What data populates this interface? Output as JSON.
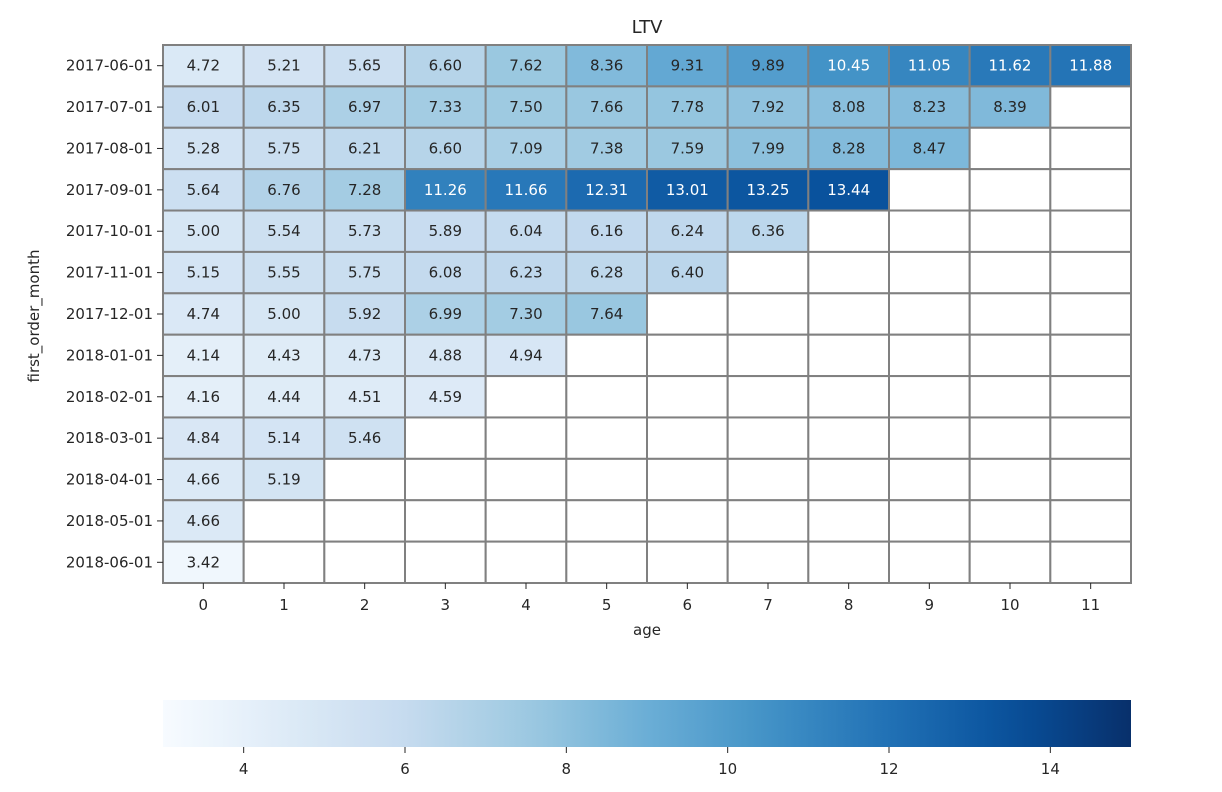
{
  "chart_data": {
    "type": "heatmap",
    "title": "LTV",
    "xlabel": "age",
    "ylabel": "first_order_month",
    "colormap": "Blues",
    "color_range": [
      3,
      15
    ],
    "colorbar_ticks": [
      4,
      6,
      8,
      10,
      12,
      14
    ],
    "x": [
      "0",
      "1",
      "2",
      "3",
      "4",
      "5",
      "6",
      "7",
      "8",
      "9",
      "10",
      "11"
    ],
    "y": [
      "2017-06-01",
      "2017-07-01",
      "2017-08-01",
      "2017-09-01",
      "2017-10-01",
      "2017-11-01",
      "2017-12-01",
      "2018-01-01",
      "2018-02-01",
      "2018-03-01",
      "2018-04-01",
      "2018-05-01",
      "2018-06-01"
    ],
    "values": [
      [
        4.72,
        5.21,
        5.65,
        6.6,
        7.62,
        8.36,
        9.31,
        9.89,
        10.45,
        11.05,
        11.62,
        11.88
      ],
      [
        6.01,
        6.35,
        6.97,
        7.33,
        7.5,
        7.66,
        7.78,
        7.92,
        8.08,
        8.23,
        8.39,
        null
      ],
      [
        5.28,
        5.75,
        6.21,
        6.6,
        7.09,
        7.38,
        7.59,
        7.99,
        8.28,
        8.47,
        null,
        null
      ],
      [
        5.64,
        6.76,
        7.28,
        11.26,
        11.66,
        12.31,
        13.01,
        13.25,
        13.44,
        null,
        null,
        null
      ],
      [
        5.0,
        5.54,
        5.73,
        5.89,
        6.04,
        6.16,
        6.24,
        6.36,
        null,
        null,
        null,
        null
      ],
      [
        5.15,
        5.55,
        5.75,
        6.08,
        6.23,
        6.28,
        6.4,
        null,
        null,
        null,
        null,
        null
      ],
      [
        4.74,
        5.0,
        5.92,
        6.99,
        7.3,
        7.64,
        null,
        null,
        null,
        null,
        null,
        null
      ],
      [
        4.14,
        4.43,
        4.73,
        4.88,
        4.94,
        null,
        null,
        null,
        null,
        null,
        null,
        null
      ],
      [
        4.16,
        4.44,
        4.51,
        4.59,
        null,
        null,
        null,
        null,
        null,
        null,
        null,
        null
      ],
      [
        4.84,
        5.14,
        5.46,
        null,
        null,
        null,
        null,
        null,
        null,
        null,
        null,
        null
      ],
      [
        4.66,
        5.19,
        null,
        null,
        null,
        null,
        null,
        null,
        null,
        null,
        null,
        null
      ],
      [
        4.66,
        null,
        null,
        null,
        null,
        null,
        null,
        null,
        null,
        null,
        null,
        null
      ],
      [
        3.42,
        null,
        null,
        null,
        null,
        null,
        null,
        null,
        null,
        null,
        null,
        null
      ]
    ],
    "value_format": "0.00",
    "gridline_color": "#808080",
    "grid": true,
    "colorbar_position": "bottom"
  }
}
